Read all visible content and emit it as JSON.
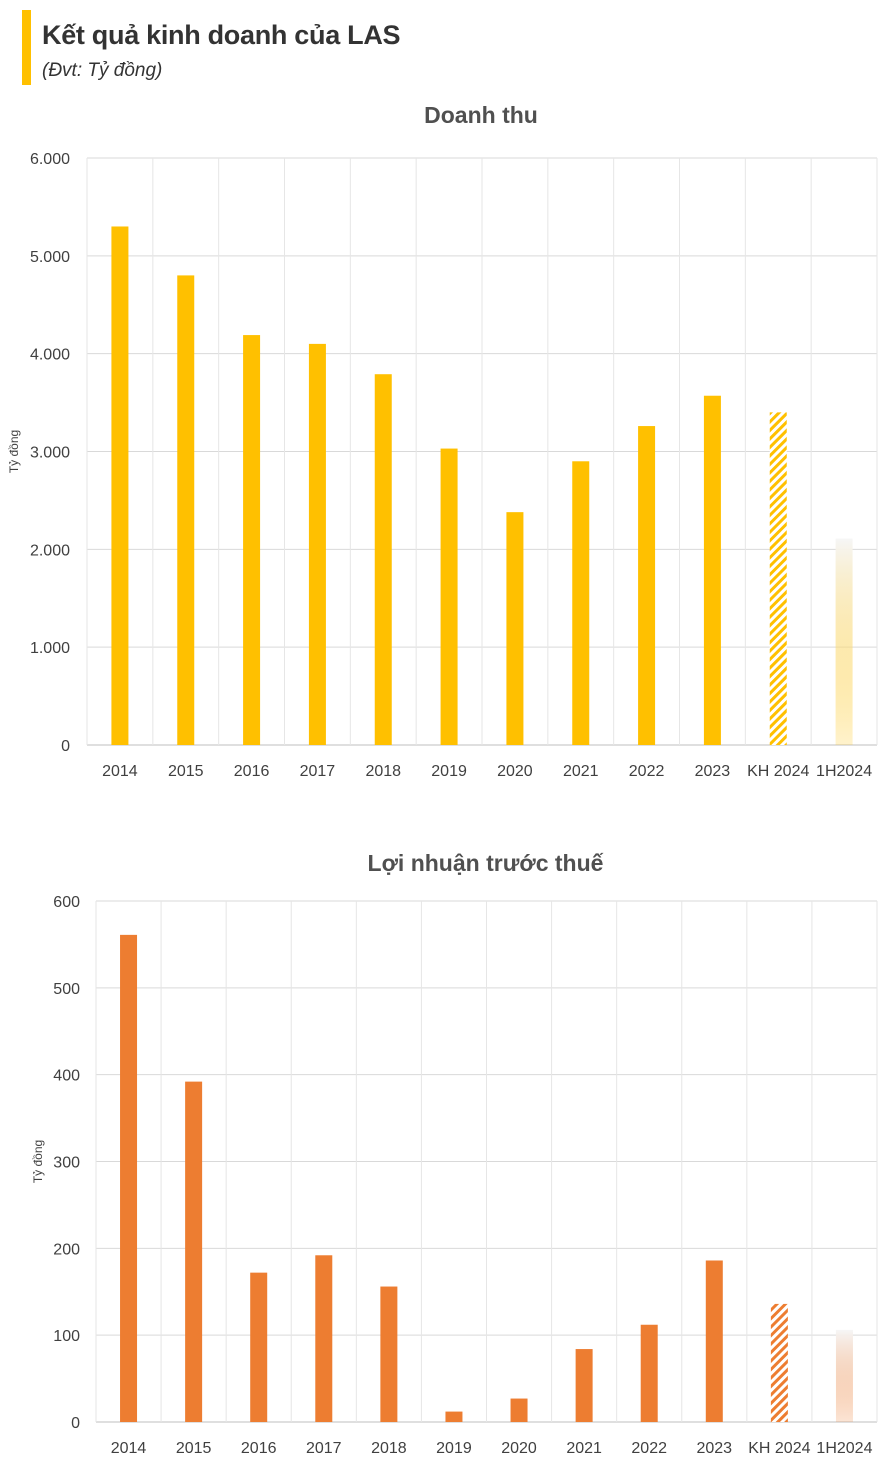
{
  "header": {
    "title": "Kết quả kinh doanh của LAS",
    "subtitle": "(Đvt: Tỷ đồng)",
    "accent_color": "#ffc000"
  },
  "chart_data": [
    {
      "type": "bar",
      "title": "Doanh thu",
      "ylabel": "Tỷ đồng",
      "xlabel": "",
      "categories": [
        "2014",
        "2015",
        "2016",
        "2017",
        "2018",
        "2019",
        "2020",
        "2021",
        "2022",
        "2023",
        "KH 2024",
        "1H2024"
      ],
      "values": [
        5300,
        4800,
        4190,
        4100,
        3790,
        3030,
        2380,
        2900,
        3260,
        3570,
        3400,
        2110
      ],
      "ylim": [
        0,
        6000
      ],
      "yticks": [
        "0",
        "1.000",
        "2.000",
        "3.000",
        "4.000",
        "5.000",
        "6.000"
      ],
      "grid": true,
      "legend": "none",
      "color": "#ffc000",
      "styles": [
        "solid",
        "solid",
        "solid",
        "solid",
        "solid",
        "solid",
        "solid",
        "solid",
        "solid",
        "solid",
        "hatched",
        "gradient"
      ]
    },
    {
      "type": "bar",
      "title": "Lợi nhuận trước thuế",
      "ylabel": "Tỷ đồng",
      "xlabel": "",
      "categories": [
        "2014",
        "2015",
        "2016",
        "2017",
        "2018",
        "2019",
        "2020",
        "2021",
        "2022",
        "2023",
        "KH 2024",
        "1H2024"
      ],
      "values": [
        561,
        392,
        172,
        192,
        156,
        12,
        27,
        84,
        112,
        186,
        136,
        106
      ],
      "ylim": [
        0,
        600
      ],
      "yticks": [
        "0",
        "100",
        "200",
        "300",
        "400",
        "500",
        "600"
      ],
      "grid": true,
      "legend": "none",
      "color": "#ed7d31",
      "styles": [
        "solid",
        "solid",
        "solid",
        "solid",
        "solid",
        "solid",
        "solid",
        "solid",
        "solid",
        "solid",
        "hatched",
        "gradient"
      ]
    }
  ]
}
